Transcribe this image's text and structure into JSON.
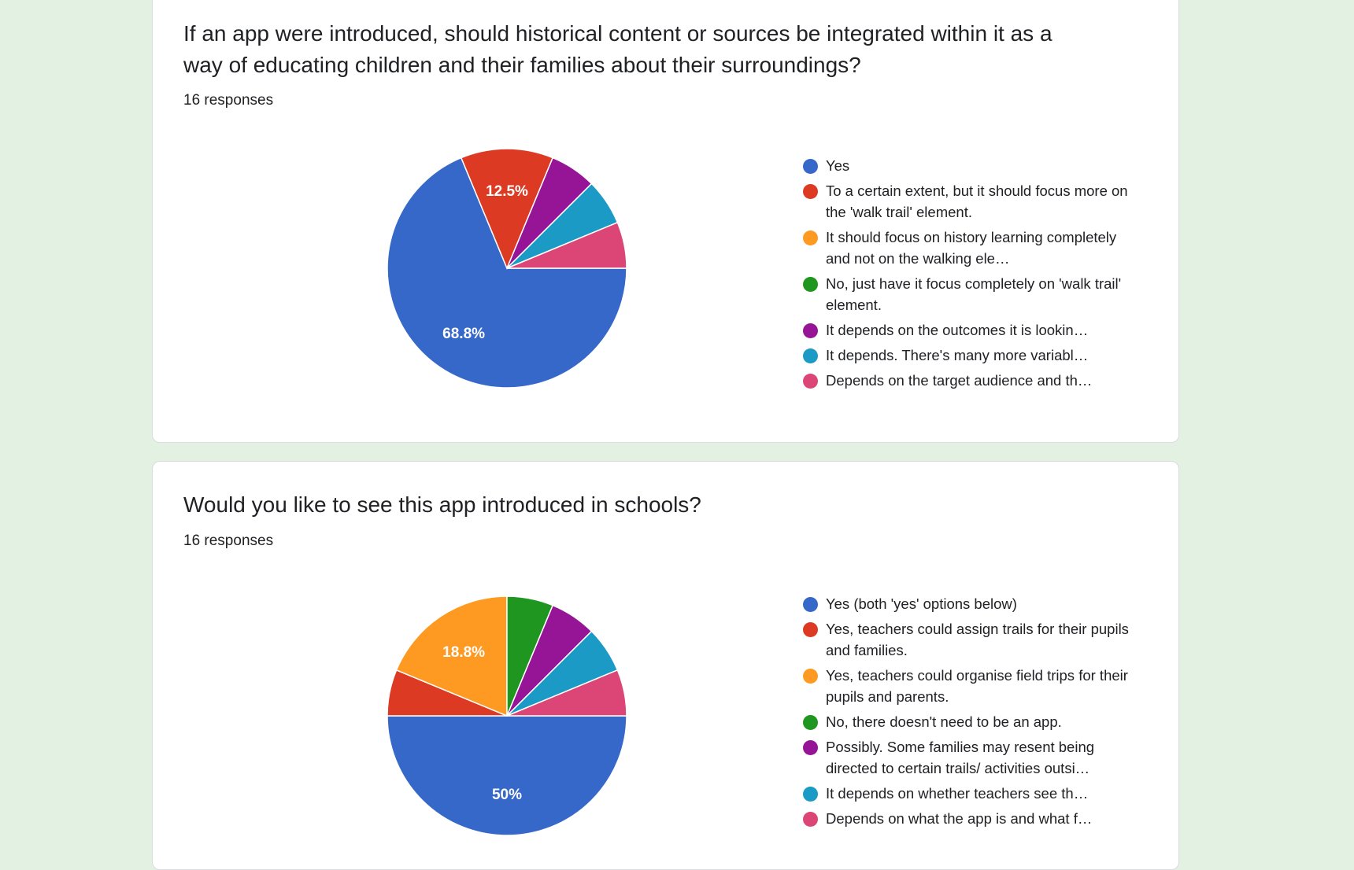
{
  "colors": [
    "#3668c9",
    "#dc3a22",
    "#fe9a21",
    "#1f961f",
    "#961496",
    "#1a9ac4",
    "#dc4677"
  ],
  "chart_data": [
    {
      "type": "pie",
      "title": "If an app were introduced, should historical content or sources be integrated within it as a way of educating children and their families about their surroundings?",
      "responses": "16 responses",
      "categories": [
        "Yes",
        "To a certain extent, but it should focus more on the 'walk trail' element.",
        "It should focus on history learning completely and not on the walking ele…",
        "No, just have it focus completely on 'walk trail' element.",
        "It depends on the outcomes it is lookin…",
        "It depends. There's many more variabl…",
        "Depends on the target audience and th…"
      ],
      "values": [
        11,
        2,
        0,
        0,
        1,
        1,
        1
      ],
      "data_labels": [
        "68.8%",
        "12.5%",
        "",
        "",
        "",
        "",
        ""
      ],
      "legend_position": "right"
    },
    {
      "type": "pie",
      "title": "Would you like to see this app introduced in schools?",
      "responses": "16 responses",
      "categories": [
        "Yes (both 'yes' options below)",
        "Yes, teachers could assign trails for their pupils and families.",
        "Yes, teachers could organise field trips for their pupils and parents.",
        "No, there doesn't need to be an app.",
        "Possibly.  Some families may resent being directed to certain trails/ activities outsi…",
        "It depends on whether teachers see th…",
        "Depends on what the app is and what f…"
      ],
      "values": [
        8,
        1,
        3,
        1,
        1,
        1,
        1
      ],
      "data_labels": [
        "50%",
        "",
        "18.8%",
        "",
        "",
        "",
        ""
      ],
      "legend_position": "right"
    }
  ]
}
